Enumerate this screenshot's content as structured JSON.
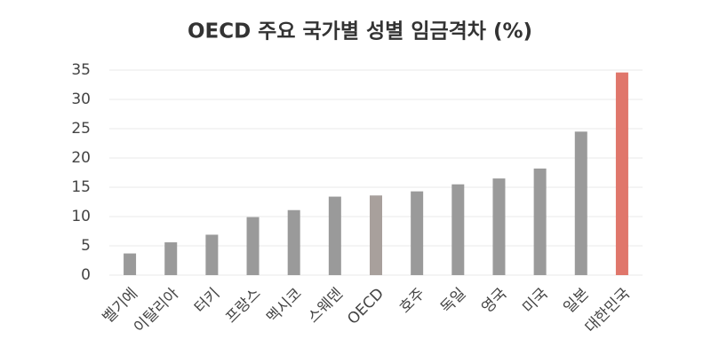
{
  "chart_data": {
    "type": "bar",
    "title": "OECD 주요 국가별 성별 임금격차 (%)",
    "categories": [
      "벨기에",
      "이탈리아",
      "터키",
      "프랑스",
      "멕시코",
      "스웨덴",
      "OECD",
      "호주",
      "독일",
      "영국",
      "미국",
      "일본",
      "대한민국"
    ],
    "values": [
      3.7,
      5.6,
      6.9,
      9.9,
      11.1,
      13.4,
      13.6,
      14.3,
      15.5,
      16.5,
      18.2,
      24.5,
      34.6
    ],
    "colors": [
      "#9a9a9a",
      "#9a9a9a",
      "#9a9a9a",
      "#9a9a9a",
      "#9a9a9a",
      "#9a9a9a",
      "#a8a09c",
      "#9a9a9a",
      "#9a9a9a",
      "#9a9a9a",
      "#9a9a9a",
      "#9a9a9a",
      "#e0766b"
    ],
    "ylim": [
      0,
      35
    ],
    "yticks": [
      0,
      5,
      10,
      15,
      20,
      25,
      30,
      35
    ],
    "grid": true
  }
}
